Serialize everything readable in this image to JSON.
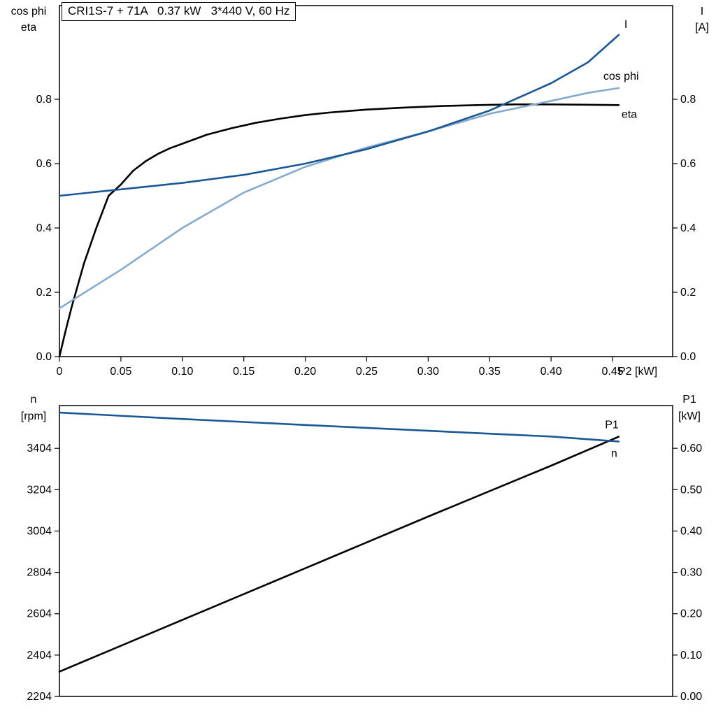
{
  "title_box": {
    "text": "CRI1S-7 + 71A   0.37 kW   3*440 V, 60 Hz"
  },
  "colors": {
    "dark_blue": "#1a5796",
    "light_blue": "#85aacc",
    "black": "#000000",
    "background": "#ffffff"
  },
  "chart_data": [
    {
      "id": "top",
      "type": "line",
      "title": "CRI1S-7 + 71A   0.37 kW   3*440 V, 60 Hz",
      "grid": false,
      "legend_position": "inline-labels",
      "x_axis": {
        "label": "P2 [kW]",
        "range": [
          0,
          0.4989
        ],
        "ticks": [
          0,
          0.05,
          0.1,
          0.15,
          0.2,
          0.25,
          0.3,
          0.35,
          0.4,
          0.45
        ],
        "tick_labels": [
          "0",
          "0.05",
          "0.10",
          "0.15",
          "0.20",
          "0.25",
          "0.30",
          "0.35",
          "0.40",
          "0.45"
        ]
      },
      "left_axis": {
        "label_lines": [
          "cos phi",
          "eta"
        ],
        "range": [
          0,
          1.0913
        ],
        "ticks": [
          0.0,
          0.2,
          0.4,
          0.6,
          0.8
        ],
        "tick_labels": [
          "0.0",
          "0.2",
          "0.4",
          "0.6",
          "0.8"
        ]
      },
      "right_axis": {
        "label_lines": [
          "I",
          "[A]"
        ],
        "range": [
          0,
          1.0913
        ],
        "ticks": [
          0.0,
          0.2,
          0.4,
          0.6,
          0.8
        ],
        "tick_labels": [
          "0.0",
          "0.2",
          "0.4",
          "0.6",
          "0.8"
        ]
      },
      "series": [
        {
          "name": "eta",
          "label": "eta",
          "color": "#000000",
          "axis": "left",
          "label_anchor": "start",
          "label_offset": [
            4,
            18
          ],
          "x": [
            0,
            0.005,
            0.01,
            0.02,
            0.03,
            0.04,
            0.05,
            0.06,
            0.07,
            0.08,
            0.09,
            0.1,
            0.12,
            0.14,
            0.16,
            0.18,
            0.2,
            0.22,
            0.25,
            0.28,
            0.31,
            0.34,
            0.37,
            0.4,
            0.43,
            0.455
          ],
          "y": [
            0,
            0.08,
            0.155,
            0.29,
            0.4,
            0.5,
            0.535,
            0.578,
            0.607,
            0.63,
            0.648,
            0.662,
            0.69,
            0.71,
            0.727,
            0.74,
            0.751,
            0.759,
            0.768,
            0.774,
            0.779,
            0.782,
            0.784,
            0.784,
            0.783,
            0.782
          ]
        },
        {
          "name": "cos-phi",
          "label": "cos phi",
          "color": "#85aacc",
          "axis": "left",
          "label_anchor": "start",
          "label_offset": [
            -22,
            -12
          ],
          "x": [
            0,
            0.05,
            0.1,
            0.15,
            0.2,
            0.25,
            0.3,
            0.35,
            0.4,
            0.43,
            0.455
          ],
          "y": [
            0.15,
            0.27,
            0.4,
            0.51,
            0.59,
            0.65,
            0.7,
            0.755,
            0.795,
            0.82,
            0.835
          ]
        },
        {
          "name": "I",
          "label": "I",
          "color": "#1a5796",
          "axis": "left",
          "label_anchor": "start",
          "label_offset": [
            8,
            -10
          ],
          "x": [
            0,
            0.05,
            0.1,
            0.15,
            0.2,
            0.25,
            0.3,
            0.35,
            0.4,
            0.43,
            0.455
          ],
          "y": [
            0.5,
            0.52,
            0.54,
            0.565,
            0.6,
            0.645,
            0.7,
            0.765,
            0.85,
            0.915,
            1.0
          ]
        }
      ]
    },
    {
      "id": "bottom",
      "type": "line",
      "title": "",
      "grid": false,
      "legend_position": "inline-labels",
      "x_axis": {
        "label": "",
        "range": [
          0,
          0.4989
        ],
        "ticks": [],
        "tick_labels": []
      },
      "left_axis": {
        "label_lines": [
          "n",
          "[rpm]"
        ],
        "range": [
          2204,
          3611
        ],
        "ticks": [
          2204,
          2404,
          2604,
          2804,
          3004,
          3204,
          3404
        ],
        "tick_labels": [
          "2204",
          "2404",
          "2604",
          "2804",
          "3004",
          "3204",
          "3404"
        ]
      },
      "right_axis": {
        "label_lines": [
          "P1",
          "[kW]"
        ],
        "range": [
          0,
          0.7034
        ],
        "ticks": [
          0.0,
          0.1,
          0.2,
          0.3,
          0.4,
          0.5,
          0.6
        ],
        "tick_labels": [
          "0.00",
          "0.10",
          "0.20",
          "0.30",
          "0.40",
          "0.50",
          "0.60"
        ]
      },
      "series": [
        {
          "name": "P1",
          "label": "P1",
          "color": "#000000",
          "axis": "right",
          "label_anchor": "end",
          "label_offset": [
            0,
            -12
          ],
          "x": [
            0,
            0.1,
            0.2,
            0.3,
            0.4,
            0.455
          ],
          "y": [
            0.06,
            0.185,
            0.31,
            0.435,
            0.558,
            0.628
          ]
        },
        {
          "name": "n",
          "label": "n",
          "color": "#1a5796",
          "axis": "left",
          "label_anchor": "end",
          "label_offset": [
            -2,
            22
          ],
          "x": [
            0,
            0.1,
            0.2,
            0.3,
            0.4,
            0.455
          ],
          "y": [
            3577,
            3546,
            3517,
            3489,
            3461,
            3437
          ]
        }
      ]
    }
  ]
}
